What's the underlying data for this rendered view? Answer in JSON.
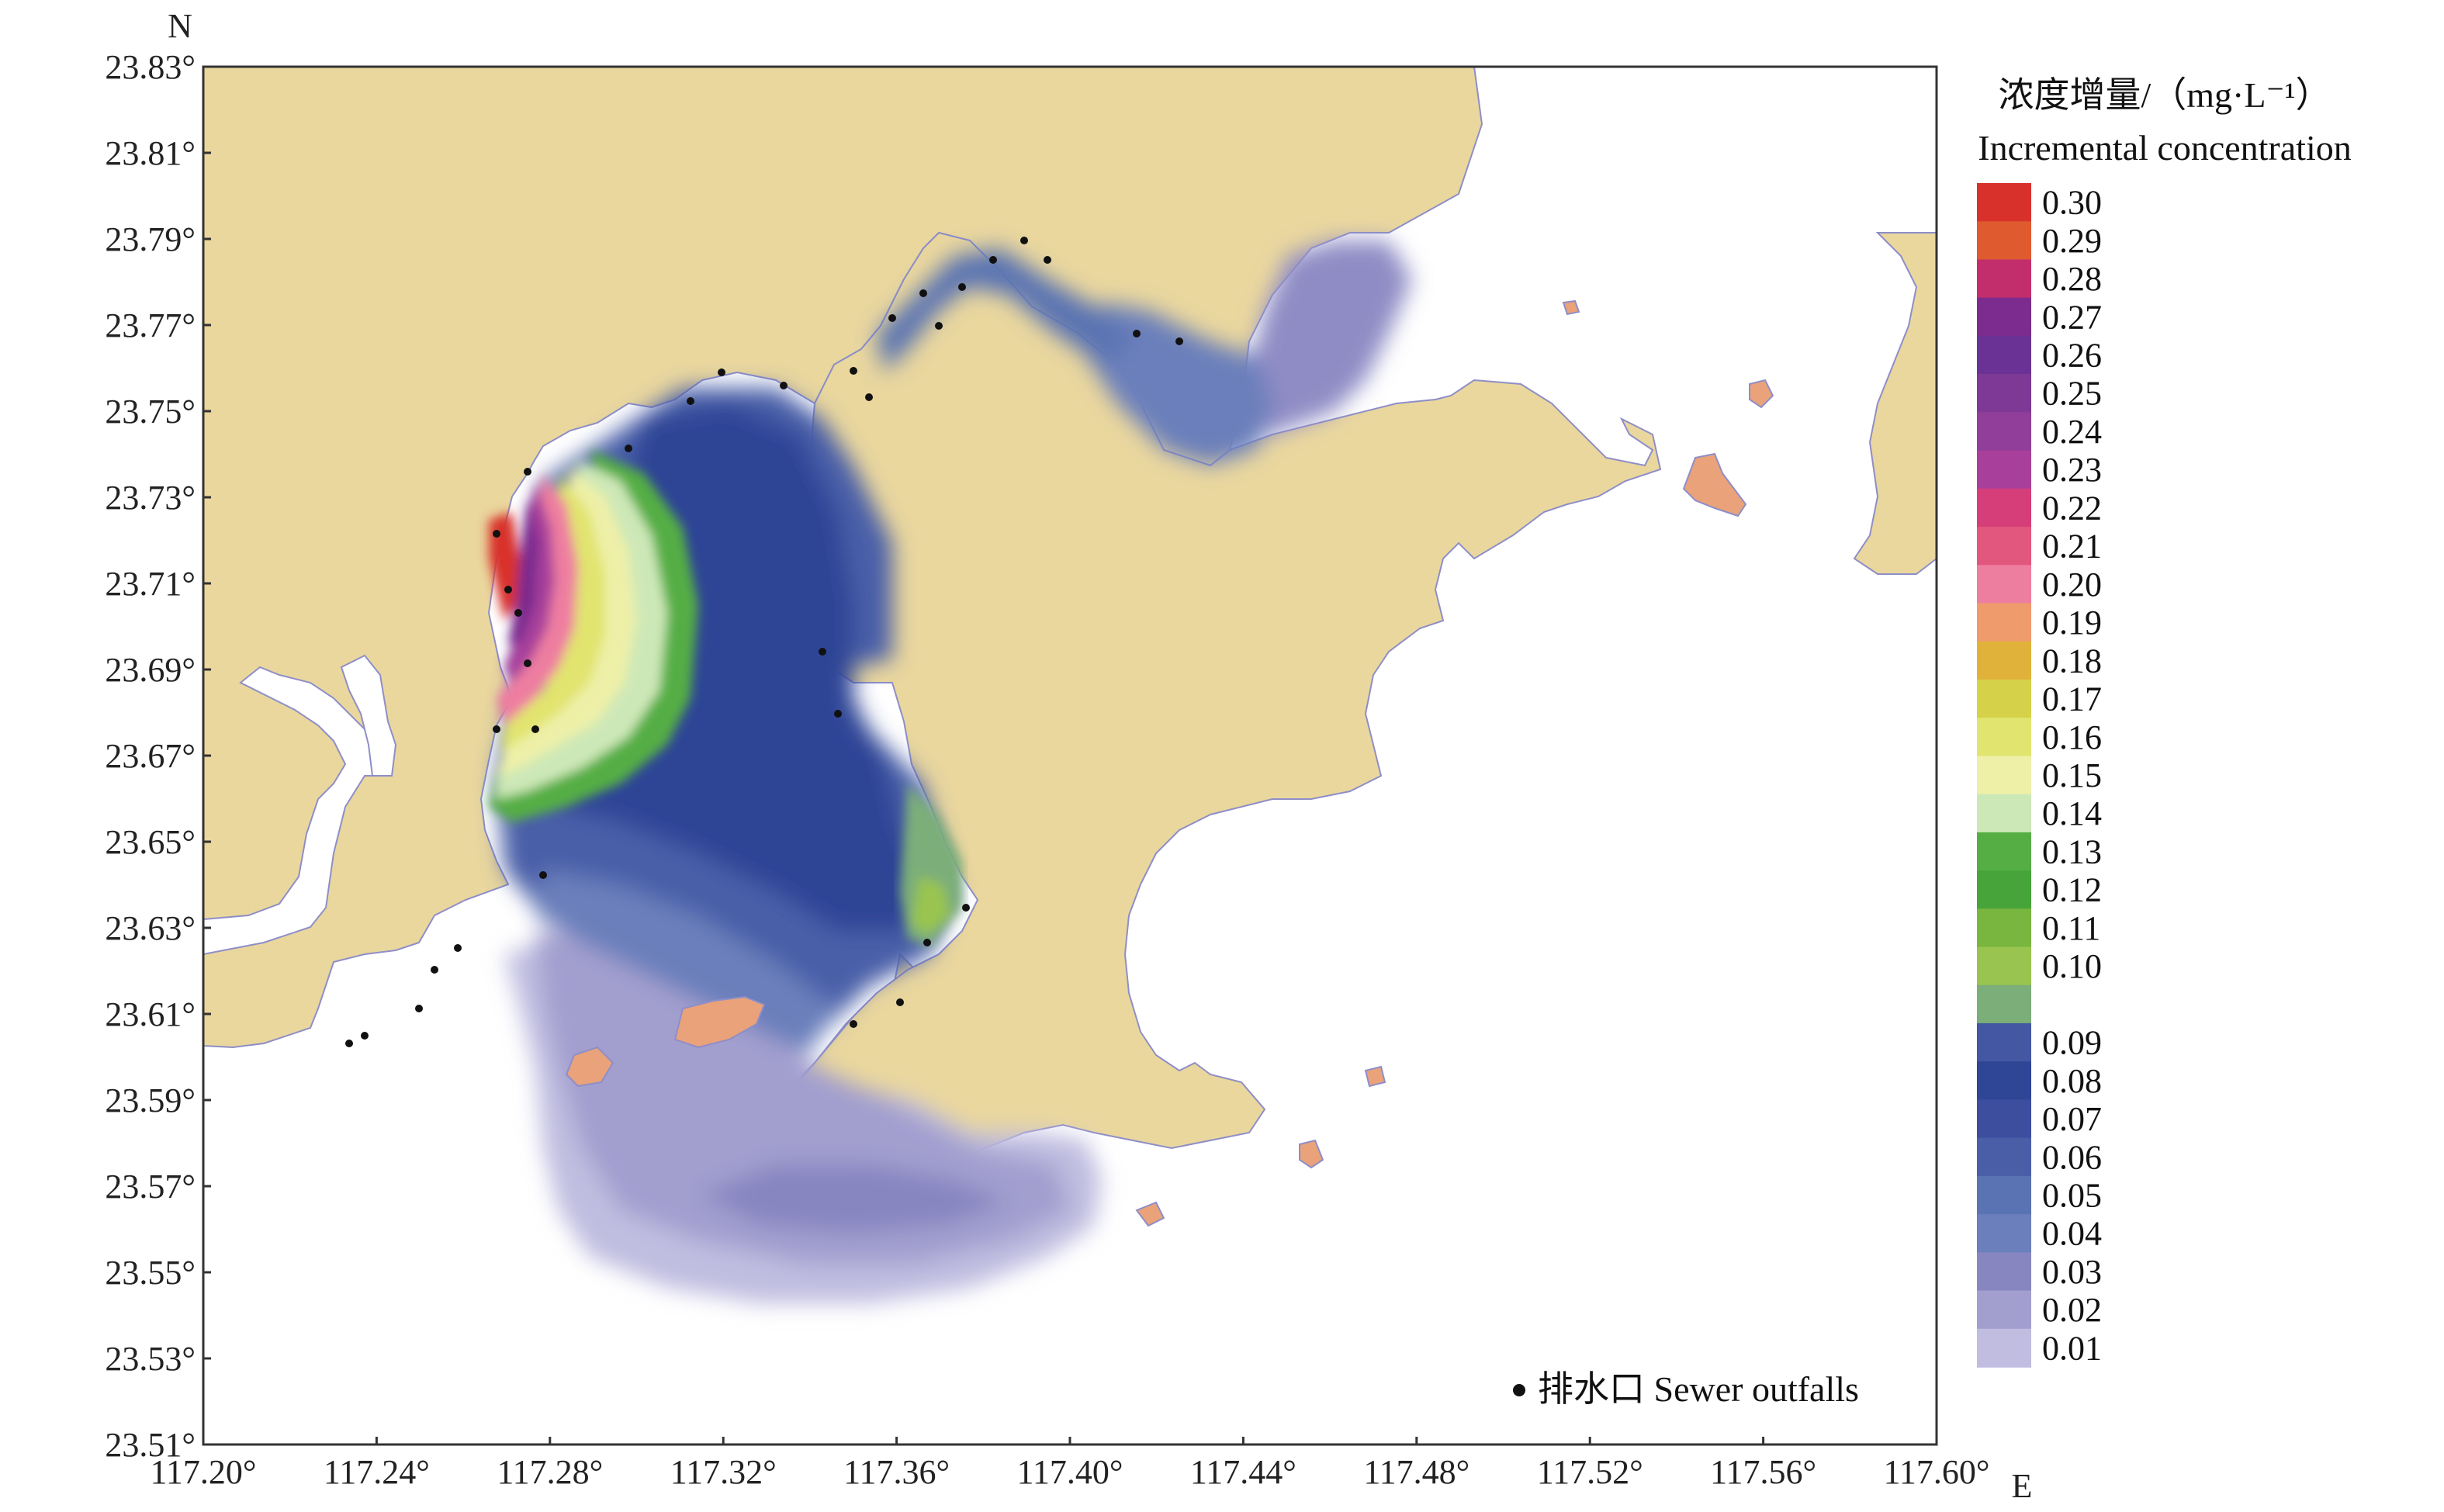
{
  "map": {
    "north_label": "N",
    "east_label": "E",
    "lat_ticks": [
      "23.83°",
      "23.81°",
      "23.79°",
      "23.77°",
      "23.75°",
      "23.73°",
      "23.71°",
      "23.69°",
      "23.67°",
      "23.65°",
      "23.63°",
      "23.61°",
      "23.59°",
      "23.57°",
      "23.55°",
      "23.53°",
      "23.51°"
    ],
    "lon_ticks": [
      "117.20°",
      "117.24°",
      "117.28°",
      "117.32°",
      "117.36°",
      "117.40°",
      "117.44°",
      "117.48°",
      "117.52°",
      "117.56°",
      "117.60°"
    ],
    "lon_range": [
      117.2,
      117.6
    ],
    "lat_range": [
      23.51,
      23.83
    ],
    "land_color": "#EAD79E",
    "island_color": "#E9A27A",
    "water_color": "#FFFFFF"
  },
  "colorbar": {
    "title_line1": "浓度增量/（mg·L⁻¹）",
    "title_line2": "Incremental concentration",
    "levels": [
      {
        "label": "0.30",
        "color": "#D8312C"
      },
      {
        "label": "0.29",
        "color": "#DF5A2E"
      },
      {
        "label": "0.28",
        "color": "#C22E6C"
      },
      {
        "label": "0.27",
        "color": "#7B2C8E"
      },
      {
        "label": "0.26",
        "color": "#6A3294"
      },
      {
        "label": "0.25",
        "color": "#7E3996"
      },
      {
        "label": "0.24",
        "color": "#913E9A"
      },
      {
        "label": "0.23",
        "color": "#A8409B"
      },
      {
        "label": "0.22",
        "color": "#D53E79"
      },
      {
        "label": "0.21",
        "color": "#E2577E"
      },
      {
        "label": "0.20",
        "color": "#EE7EA0"
      },
      {
        "label": "0.19",
        "color": "#F09B6C"
      },
      {
        "label": "0.18",
        "color": "#E0B23A"
      },
      {
        "label": "0.17",
        "color": "#D5D24A"
      },
      {
        "label": "0.16",
        "color": "#E1E46E"
      },
      {
        "label": "0.15",
        "color": "#EEF0A8"
      },
      {
        "label": "0.14",
        "color": "#CDE8B7"
      },
      {
        "label": "0.13",
        "color": "#55AE44"
      },
      {
        "label": "0.12",
        "color": "#47A43A"
      },
      {
        "label": "0.11",
        "color": "#78B63F"
      },
      {
        "label": "0.10",
        "color": "#99C450"
      },
      {
        "label": "",
        "color": "#7BAE79"
      },
      {
        "label": "0.09",
        "color": "#4457A3"
      },
      {
        "label": "0.08",
        "color": "#2F4596"
      },
      {
        "label": "0.07",
        "color": "#3D4E9F"
      },
      {
        "label": "0.06",
        "color": "#4A5EA8"
      },
      {
        "label": "0.05",
        "color": "#5A73B2"
      },
      {
        "label": "0.04",
        "color": "#6A7FBB"
      },
      {
        "label": "0.03",
        "color": "#8786C1"
      },
      {
        "label": "0.02",
        "color": "#A29FCF"
      },
      {
        "label": "0.01",
        "color": "#C0BDE0"
      }
    ]
  },
  "legend": {
    "outfall_label": "排水口 Sewer outfalls"
  }
}
